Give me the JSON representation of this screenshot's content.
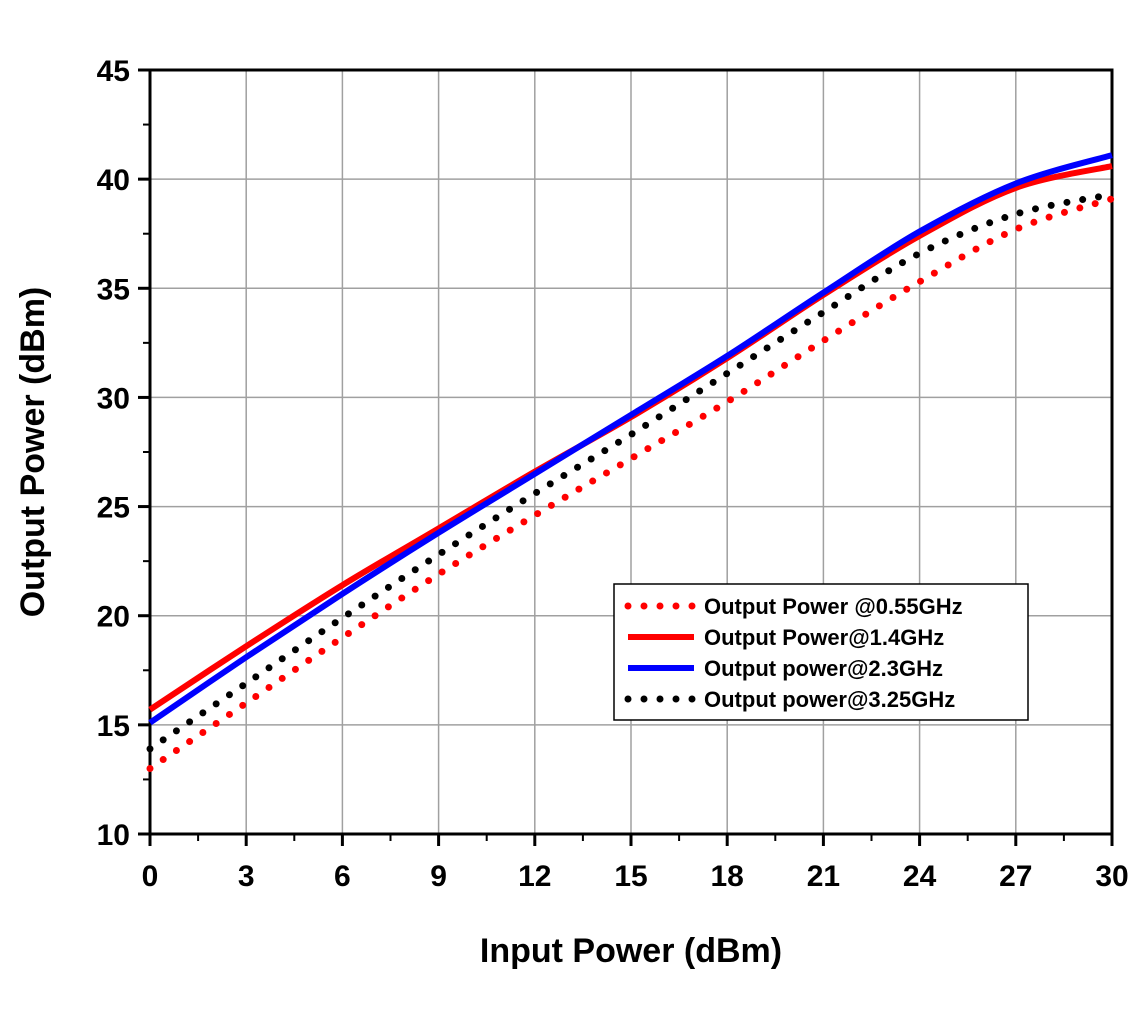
{
  "chart_data": {
    "type": "line",
    "xlabel": "Input Power (dBm)",
    "ylabel": "Output Power (dBm)",
    "xlim": [
      0,
      30
    ],
    "ylim": [
      10,
      45
    ],
    "xticks": [
      0,
      3,
      6,
      9,
      12,
      15,
      18,
      21,
      24,
      27,
      30
    ],
    "yticks": [
      10,
      15,
      20,
      25,
      30,
      35,
      40,
      45
    ],
    "grid": true,
    "legend_position": "lower-right",
    "series": [
      {
        "name": "Output Power @0.55GHz",
        "color": "#ff0000",
        "style": "dotted",
        "x": [
          0,
          3,
          6,
          9,
          12,
          15,
          18,
          21,
          24,
          27,
          30
        ],
        "y": [
          13.0,
          16.0,
          19.0,
          21.9,
          24.6,
          27.2,
          29.8,
          32.6,
          35.3,
          37.7,
          39.1
        ]
      },
      {
        "name": "Output Power@1.4GHz",
        "color": "#ff0000",
        "style": "solid",
        "x": [
          0,
          3,
          6,
          9,
          12,
          15,
          18,
          21,
          24,
          27,
          30
        ],
        "y": [
          15.7,
          18.6,
          21.4,
          24.0,
          26.6,
          29.1,
          31.8,
          34.7,
          37.4,
          39.6,
          40.6
        ]
      },
      {
        "name": "Output power@2.3GHz",
        "color": "#0000ff",
        "style": "solid",
        "x": [
          0,
          3,
          6,
          9,
          12,
          15,
          18,
          21,
          24,
          27,
          30
        ],
        "y": [
          15.1,
          18.1,
          21.0,
          23.8,
          26.5,
          29.2,
          31.9,
          34.8,
          37.6,
          39.8,
          41.1
        ]
      },
      {
        "name": "Output power@3.25GHz",
        "color": "#000000",
        "style": "dotted",
        "x": [
          0,
          3,
          6,
          9,
          12,
          15,
          18,
          21,
          24,
          27,
          30
        ],
        "y": [
          13.9,
          16.9,
          19.9,
          22.8,
          25.6,
          28.3,
          31.1,
          33.9,
          36.6,
          38.4,
          39.3
        ]
      }
    ]
  }
}
